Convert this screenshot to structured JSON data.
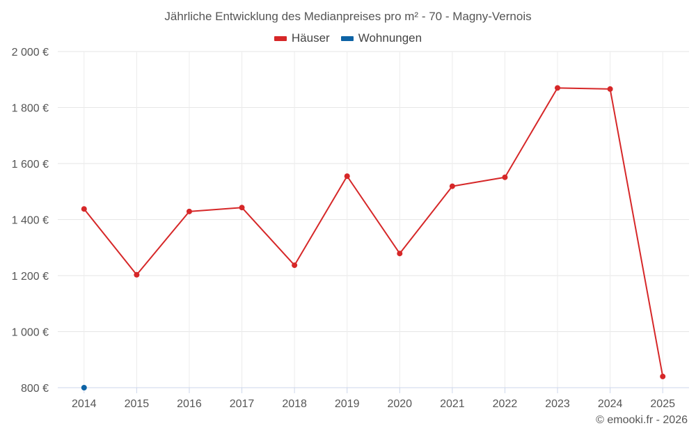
{
  "chart_data": {
    "type": "line",
    "title": "Jährliche Entwicklung des Medianpreises pro m² - 70 - Magny-Vernois",
    "categories": [
      "2014",
      "2015",
      "2016",
      "2017",
      "2018",
      "2019",
      "2020",
      "2021",
      "2022",
      "2023",
      "2024",
      "2025"
    ],
    "ylim": [
      800,
      2000
    ],
    "yticks": [
      800,
      1000,
      1200,
      1400,
      1600,
      1800,
      2000
    ],
    "ytick_labels": [
      "800 €",
      "1 000 €",
      "1 200 €",
      "1 400 €",
      "1 600 €",
      "1 800 €",
      "2 000 €"
    ],
    "xlabel": "",
    "ylabel": "",
    "grid": true,
    "legend_position": "top-center",
    "series": [
      {
        "name": "Häuser",
        "color": "#d62728",
        "values": [
          1438,
          1203,
          1429,
          1443,
          1237,
          1555,
          1279,
          1519,
          1551,
          1870,
          1866,
          840
        ]
      },
      {
        "name": "Wohnungen",
        "color": "#0d63a5",
        "values": [
          800,
          null,
          null,
          null,
          null,
          null,
          null,
          null,
          null,
          null,
          null,
          null
        ]
      }
    ]
  },
  "credit": "© emooki.fr - 2026"
}
